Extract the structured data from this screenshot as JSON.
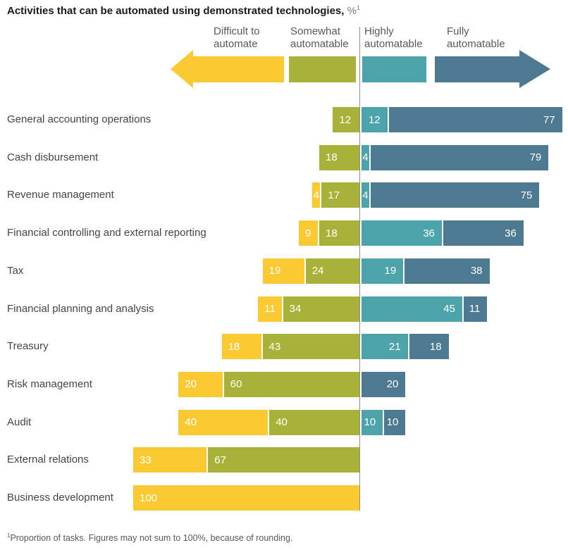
{
  "title": {
    "main": "Activities that can be automated using demonstrated technologies,",
    "unit": "%",
    "unit_sup": "1"
  },
  "footnote": {
    "sup": "1",
    "text": "Proportion of tasks. Figures may not sum to 100%, because of rounding."
  },
  "colors": {
    "difficult": "#FBCA33",
    "somewhat": "#A9B238",
    "highly": "#4CA3AA",
    "fully": "#4D7A90",
    "axis_line": "#8C8C8C",
    "value_text": "#FFFFFF"
  },
  "legend": [
    {
      "key": "difficult",
      "label_line1": "Difficult to",
      "label_line2": "automate",
      "shape": "arrow-left",
      "color": "#FBCA33"
    },
    {
      "key": "somewhat",
      "label_line1": "Somewhat",
      "label_line2": "automatable",
      "shape": "rect",
      "color": "#A9B238"
    },
    {
      "key": "highly",
      "label_line1": "Highly",
      "label_line2": "automatable",
      "shape": "rect",
      "color": "#4CA3AA"
    },
    {
      "key": "fully",
      "label_line1": "Fully",
      "label_line2": "automatable",
      "shape": "arrow-right",
      "color": "#4D7A90"
    }
  ],
  "chart_data": {
    "type": "bar",
    "orientation": "horizontal-diverging-stacked",
    "title": "Activities that can be automated using demonstrated technologies, %",
    "unit": "%",
    "legend_position": "top",
    "baseline": "segments 'difficult' and 'somewhat' extend left of the divider; 'highly' and 'fully' extend right",
    "categories": [
      "General accounting operations",
      "Cash disbursement",
      "Revenue management",
      "Financial controlling and external reporting",
      "Tax",
      "Financial planning and analysis",
      "Treasury",
      "Risk management",
      "Audit",
      "External relations",
      "Business development"
    ],
    "series": [
      {
        "name": "Difficult to automate",
        "key": "difficult",
        "values": [
          null,
          null,
          4,
          9,
          19,
          11,
          18,
          20,
          40,
          33,
          100
        ]
      },
      {
        "name": "Somewhat automatable",
        "key": "somewhat",
        "values": [
          12,
          18,
          17,
          18,
          24,
          34,
          43,
          60,
          40,
          67,
          null
        ]
      },
      {
        "name": "Highly automatable",
        "key": "highly",
        "values": [
          12,
          4,
          4,
          36,
          19,
          45,
          21,
          null,
          10,
          null,
          null
        ]
      },
      {
        "name": "Fully automatable",
        "key": "fully",
        "values": [
          77,
          79,
          75,
          36,
          38,
          11,
          18,
          20,
          10,
          null,
          null
        ]
      }
    ]
  }
}
